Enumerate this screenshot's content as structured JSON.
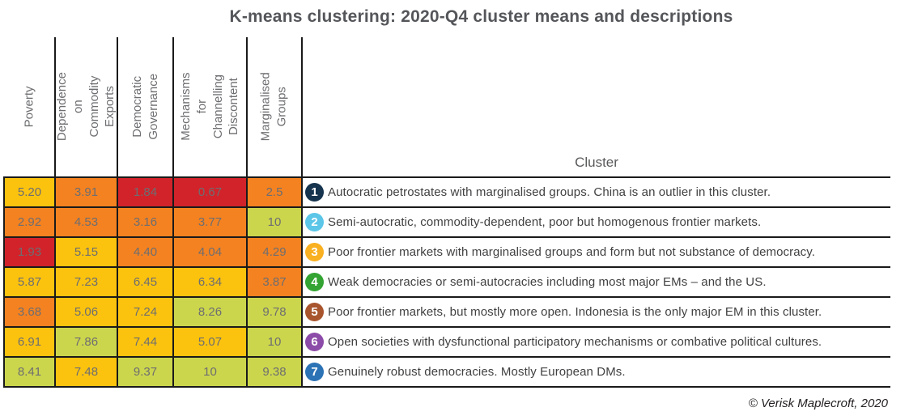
{
  "title": "K-means clustering: 2020-Q4 cluster means and descriptions",
  "cluster_header": "Cluster",
  "footer": "© Verisk Maplecroft, 2020",
  "palette": {
    "red": "#D2232A",
    "orange": "#F58220",
    "yellow": "#FCC30E",
    "yellow_green": "#CCD64C",
    "grid_line": "#1A1A1A",
    "header_text": "#6D6E71",
    "cell_text": "#6D6E71",
    "description_text": "#414042"
  },
  "header_labels": [
    {
      "label": "Poverty"
    },
    {
      "label": "Dependence on\nCommodity\nExports"
    },
    {
      "label": "Democratic\nGovernance"
    },
    {
      "label": "Mechanisms for\nChannelling\nDiscontent"
    },
    {
      "label": "Marginalised\nGroups"
    }
  ],
  "chart_data": {
    "type": "heatmap",
    "title": "K-means clustering: 2020-Q4 cluster means and descriptions",
    "columns": [
      "Poverty",
      "Dependence on Commodity Exports",
      "Democratic Governance",
      "Mechanisms for Channelling Discontent",
      "Marginalised Groups"
    ],
    "value_range": [
      0,
      10
    ],
    "color_scale": {
      "low": "#D2232A",
      "mid_low": "#F58220",
      "mid_high": "#FCC30E",
      "high": "#CCD64C"
    },
    "rows": [
      {
        "cluster": "1",
        "badge_color": "#16344E",
        "values": [
          5.2,
          3.91,
          1.84,
          0.67,
          2.5
        ],
        "display": [
          "5.20",
          "3.91",
          "1.84",
          "0.67",
          "2.5"
        ],
        "cell_colors": [
          "#FCC30E",
          "#F58220",
          "#D2232A",
          "#D2232A",
          "#F58220"
        ],
        "description": "Autocratic petrostates with marginalised groups. China is an outlier in this cluster."
      },
      {
        "cluster": "2",
        "badge_color": "#5BC6E8",
        "values": [
          2.92,
          4.53,
          3.16,
          3.77,
          10
        ],
        "display": [
          "2.92",
          "4.53",
          "3.16",
          "3.77",
          "10"
        ],
        "cell_colors": [
          "#F58220",
          "#F58220",
          "#F58220",
          "#F58220",
          "#CCD64C"
        ],
        "description": "Semi-autocratic, commodity-dependent, poor but homogenous frontier markets."
      },
      {
        "cluster": "3",
        "badge_color": "#F9B021",
        "values": [
          1.93,
          5.15,
          4.4,
          4.04,
          4.29
        ],
        "display": [
          "1.93",
          "5.15",
          "4.40",
          "4.04",
          "4.29"
        ],
        "cell_colors": [
          "#D2232A",
          "#FCC30E",
          "#F58220",
          "#F58220",
          "#F58220"
        ],
        "description": "Poor frontier markets with marginalised groups and form but not substance of democracy."
      },
      {
        "cluster": "4",
        "badge_color": "#33A433",
        "values": [
          5.87,
          7.23,
          6.45,
          6.34,
          3.87
        ],
        "display": [
          "5.87",
          "7.23",
          "6.45",
          "6.34",
          "3.87"
        ],
        "cell_colors": [
          "#FCC30E",
          "#FCC30E",
          "#FCC30E",
          "#FCC30E",
          "#F58220"
        ],
        "description": "Weak democracies or semi-autocracies including most major EMs – and the US."
      },
      {
        "cluster": "5",
        "badge_color": "#A8552E",
        "values": [
          3.68,
          5.06,
          7.24,
          8.26,
          9.78
        ],
        "display": [
          "3.68",
          "5.06",
          "7.24",
          "8.26",
          "9.78"
        ],
        "cell_colors": [
          "#F58220",
          "#FCC30E",
          "#FCC30E",
          "#CCD64C",
          "#CCD64C"
        ],
        "description": "Poor frontier markets, but mostly more open. Indonesia is the only major EM in this cluster."
      },
      {
        "cluster": "6",
        "badge_color": "#8C4BA8",
        "values": [
          6.91,
          7.86,
          7.44,
          5.07,
          10
        ],
        "display": [
          "6.91",
          "7.86",
          "7.44",
          "5.07",
          "10"
        ],
        "cell_colors": [
          "#FCC30E",
          "#CCD64C",
          "#FCC30E",
          "#FCC30E",
          "#CCD64C"
        ],
        "description": "Open societies with dysfunctional participatory mechanisms or combative political cultures."
      },
      {
        "cluster": "7",
        "badge_color": "#2C73B5",
        "values": [
          8.41,
          7.48,
          9.37,
          10,
          9.38
        ],
        "display": [
          "8.41",
          "7.48",
          "9.37",
          "10",
          "9.38"
        ],
        "cell_colors": [
          "#CCD64C",
          "#FCC30E",
          "#CCD64C",
          "#CCD64C",
          "#CCD64C"
        ],
        "description": "Genuinely robust democracies. Mostly European DMs."
      }
    ]
  }
}
